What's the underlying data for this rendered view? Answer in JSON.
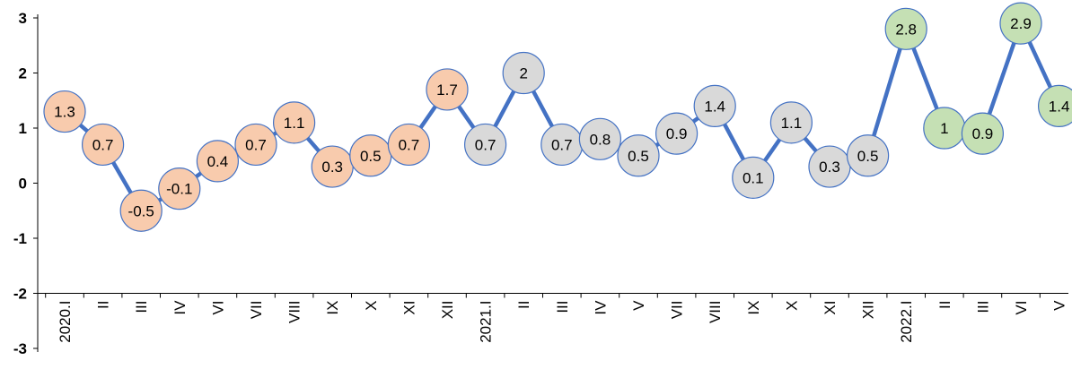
{
  "chart_data": {
    "type": "line",
    "title": "",
    "xlabel": "",
    "ylabel": "",
    "ylim": [
      -3,
      3
    ],
    "yticks": [
      3,
      2,
      1,
      0,
      -1,
      -2,
      -3
    ],
    "grid": false,
    "line_color": "#4472C4",
    "categories": [
      "2020.I",
      "II",
      "III",
      "IV",
      "VI",
      "VII",
      "VIII",
      "IX",
      "X",
      "XI",
      "XII",
      "2021.I",
      "II",
      "III",
      "IV",
      "V",
      "VII",
      "VIII",
      "IX",
      "X",
      "XI",
      "XII",
      "2022.I",
      "II",
      "III",
      "VI",
      "V"
    ],
    "values": [
      1.3,
      0.7,
      -0.5,
      -0.1,
      0.4,
      0.7,
      1.1,
      0.3,
      0.5,
      0.7,
      1.7,
      0.7,
      2,
      0.7,
      0.8,
      0.5,
      0.9,
      1.4,
      0.1,
      1.1,
      0.3,
      0.5,
      2.8,
      1,
      0.9,
      2.9,
      1.4
    ],
    "labels": [
      "1.3",
      "0.7",
      "-0.5",
      "-0.1",
      "0.4",
      "0.7",
      "1.1",
      "0.3",
      "0.5",
      "0.7",
      "1.7",
      "0.7",
      "2",
      "0.7",
      "0.8",
      "0.5",
      "0.9",
      "1.4",
      "0.1",
      "1.1",
      "0.3",
      "0.5",
      "2.8",
      "1",
      "0.9",
      "2.9",
      "1.4"
    ],
    "groups": [
      {
        "year": "2020",
        "color": "#F8CBAD",
        "count": 11
      },
      {
        "year": "2021",
        "color": "#D9D9D9",
        "count": 11
      },
      {
        "year": "2022",
        "color": "#C5E0B4",
        "count": 5
      }
    ],
    "marker_border": "#4472C4"
  }
}
